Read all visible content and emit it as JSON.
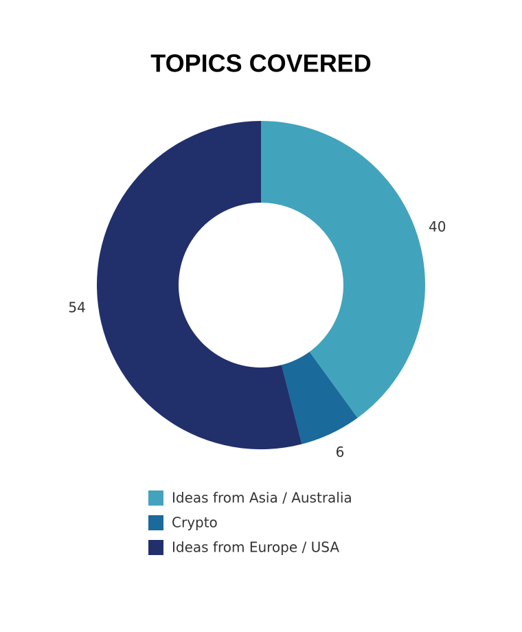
{
  "chart_data": {
    "type": "donut",
    "title": "TOPICS COVERED",
    "categories": [
      "Ideas from Asia / Australia",
      "Crypto",
      "Ideas from Europe / USA"
    ],
    "values": [
      40,
      6,
      54
    ],
    "colors": [
      "#41a4bc",
      "#1a6a9b",
      "#21306b"
    ]
  }
}
